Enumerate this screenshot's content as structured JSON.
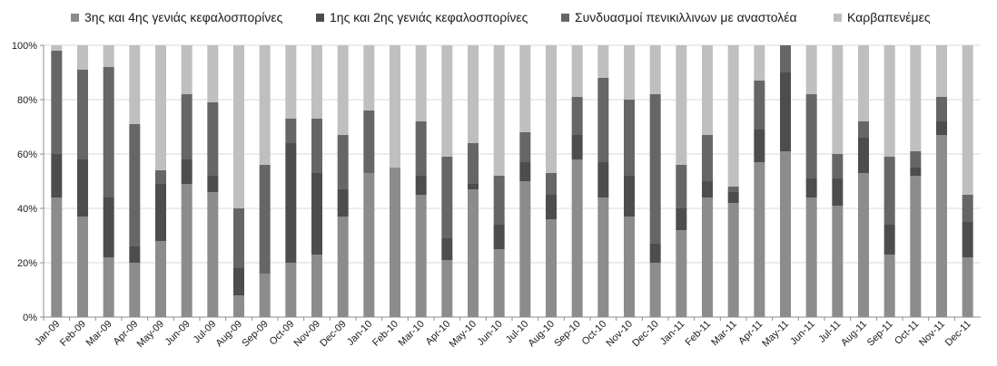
{
  "chart_data": {
    "type": "bar",
    "stacked": "percent",
    "categories": [
      "Jan-09",
      "Feb-09",
      "Mar-09",
      "Apr-09",
      "May-09",
      "Jun-09",
      "Jul-09",
      "Aug-09",
      "Sep-09",
      "Oct-09",
      "Nov-09",
      "Dec-09",
      "Jan-10",
      "Feb-10",
      "Mar-10",
      "Apr-10",
      "May-10",
      "Jun-10",
      "Jul-10",
      "Aug-10",
      "Sep-10",
      "Oct-10",
      "Nov-10",
      "Dec-10",
      "Jan-11",
      "Feb-11",
      "Mar-11",
      "Apr-11",
      "May-11",
      "Jun-11",
      "Jul-11",
      "Aug-11",
      "Sep-11",
      "Oct-11",
      "Nov-11",
      "Dec-11"
    ],
    "series": [
      {
        "name": "3ης και 4ης γενιάς κεφαλοσπορίνες",
        "color": "#8c8c8c",
        "values": [
          44,
          37,
          22,
          20,
          28,
          49,
          46,
          8,
          16,
          20,
          23,
          37,
          53,
          55,
          45,
          21,
          47,
          25,
          50,
          36,
          58,
          44,
          37,
          20,
          32,
          44,
          42,
          57,
          61,
          44,
          41,
          53,
          23,
          52,
          67,
          22
        ]
      },
      {
        "name": "1ης και 2ης γενιάς κεφαλοσπορίνες",
        "color": "#4d4d4d",
        "values": [
          16,
          21,
          22,
          6,
          21,
          9,
          6,
          10,
          0,
          44,
          30,
          10,
          0,
          0,
          7,
          8,
          2,
          9,
          7,
          9,
          9,
          13,
          15,
          7,
          8,
          6,
          4,
          12,
          29,
          7,
          10,
          13,
          11,
          3,
          5,
          13
        ]
      },
      {
        "name": "Συνδυασμοί πενικιλλινων με αναστολέα",
        "color": "#666666",
        "values": [
          38,
          33,
          48,
          45,
          5,
          24,
          27,
          22,
          40,
          9,
          20,
          20,
          23,
          0,
          20,
          30,
          15,
          18,
          11,
          8,
          14,
          31,
          28,
          55,
          16,
          17,
          2,
          18,
          10,
          31,
          9,
          6,
          25,
          6,
          9,
          10
        ]
      },
      {
        "name": "Καρβαπενέμες",
        "color": "#bfbfbf",
        "values": [
          2,
          9,
          8,
          29,
          46,
          18,
          21,
          60,
          44,
          27,
          27,
          33,
          24,
          45,
          28,
          41,
          36,
          48,
          32,
          47,
          19,
          12,
          20,
          18,
          44,
          33,
          52,
          13,
          0,
          18,
          40,
          28,
          41,
          39,
          19,
          55
        ]
      }
    ],
    "yticks": [
      "0%",
      "20%",
      "40%",
      "60%",
      "80%",
      "100%"
    ],
    "ylim": [
      0,
      100
    ],
    "grid": true,
    "legend": "top"
  }
}
